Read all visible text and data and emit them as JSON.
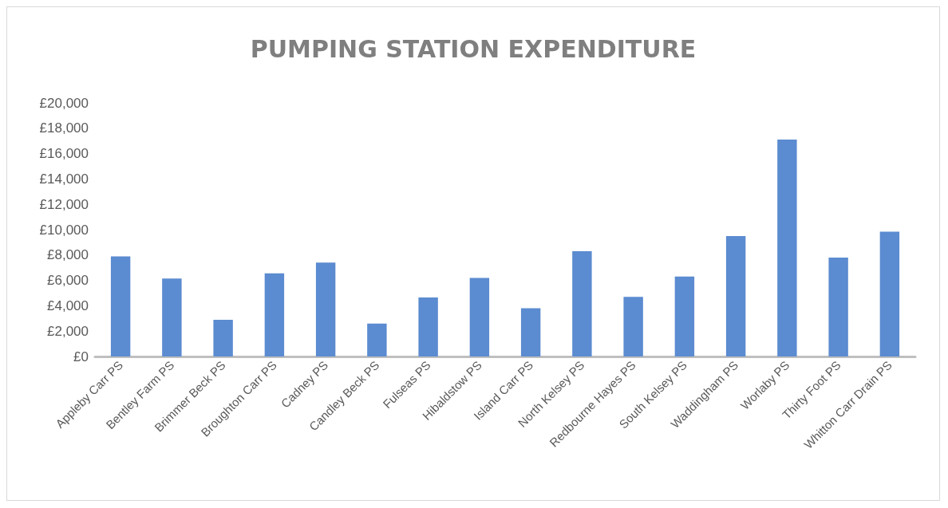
{
  "chart_data": {
    "type": "bar",
    "title": "PUMPING STATION EXPENDITURE",
    "categories": [
      "Appleby Carr PS",
      "Bentley Farm PS",
      "Brimmer Beck PS",
      "Broughton Carr PS",
      "Cadney PS",
      "Candley Beck PS",
      "Fulseas PS",
      "Hibaldstow PS",
      "Island Carr PS",
      "North Kelsey PS",
      "Redbourne Hayes PS",
      "South Kelsey PS",
      "Waddingham PS",
      "Worlaby PS",
      "Thirty Foot PS",
      "Whitton Carr Drain PS"
    ],
    "values": [
      7900,
      6150,
      2900,
      6550,
      7400,
      2600,
      4650,
      6200,
      3800,
      8300,
      4700,
      6300,
      9500,
      17100,
      7800,
      9850
    ],
    "color": "#5b8bd0",
    "ylim": [
      0,
      20000
    ],
    "yticks": [
      {
        "value": 0,
        "label": "£0"
      },
      {
        "value": 2000,
        "label": "£2,000"
      },
      {
        "value": 4000,
        "label": "£4,000"
      },
      {
        "value": 6000,
        "label": "£6,000"
      },
      {
        "value": 8000,
        "label": "£8,000"
      },
      {
        "value": 10000,
        "label": "£10,000"
      },
      {
        "value": 12000,
        "label": "£12,000"
      },
      {
        "value": 14000,
        "label": "£14,000"
      },
      {
        "value": 16000,
        "label": "£16,000"
      },
      {
        "value": 18000,
        "label": "£18,000"
      },
      {
        "value": 20000,
        "label": "£20,000"
      }
    ],
    "grid": false
  }
}
